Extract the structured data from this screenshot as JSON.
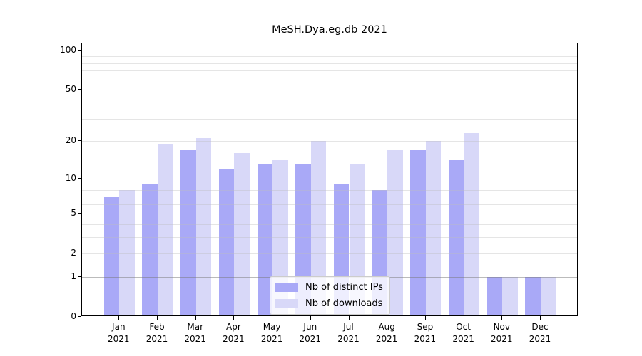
{
  "figure": {
    "title": "MeSH.Dya.eg.db 2021",
    "background": "#ffffff"
  },
  "chart_data": {
    "type": "bar",
    "title": "MeSH.Dya.eg.db 2021",
    "scale": "log1p",
    "categories": [
      "Jan",
      "Feb",
      "Mar",
      "Apr",
      "May",
      "Jun",
      "Jul",
      "Aug",
      "Sep",
      "Oct",
      "Nov",
      "Dec"
    ],
    "category_year": "2021",
    "series": [
      {
        "name": "Nb of distinct IPs",
        "color": "#a9a9f7",
        "values": [
          7,
          9,
          17,
          12,
          13,
          13,
          9,
          8,
          17,
          14,
          1,
          1
        ]
      },
      {
        "name": "Nb of downloads",
        "color": "#d8d8f8",
        "values": [
          8,
          19,
          21,
          16,
          14,
          20,
          13,
          17,
          20,
          23,
          1,
          1
        ]
      }
    ],
    "ylim": [
      0,
      113
    ],
    "y_tick_values": [
      0,
      1,
      2,
      5,
      10,
      20,
      50,
      100
    ],
    "y_tick_labels": [
      "0",
      "1",
      "2",
      "5",
      "10",
      "20",
      "50",
      "100"
    ],
    "y_major_gridlines": [
      1,
      10,
      100
    ],
    "y_minor_gridlines": [
      2,
      3,
      4,
      5,
      6,
      7,
      8,
      9,
      20,
      30,
      40,
      50,
      60,
      70,
      80,
      90
    ],
    "grid": true,
    "legend_location": "lower center"
  },
  "colors": {
    "spine": "#000000",
    "major_grid": "rgba(120,120,120,0.5)",
    "minor_grid": "rgba(190,190,190,0.4)",
    "legend_border": "#cccccc",
    "legend_bg": "rgba(255,255,255,0.8)",
    "text": "#000000"
  }
}
